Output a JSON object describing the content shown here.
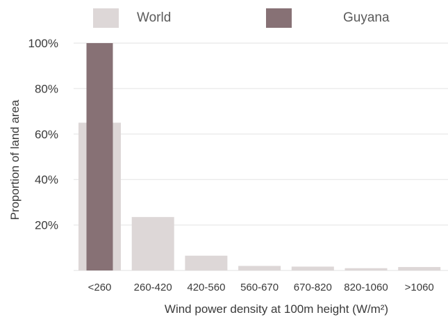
{
  "chart_data": {
    "type": "bar",
    "xlabel": "Wind power density at 100m height (W/m²)",
    "ylabel": "Proportion of land area",
    "categories": [
      "<260",
      "260-420",
      "420-560",
      "560-670",
      "670-820",
      "820-1060",
      ">1060"
    ],
    "series": [
      {
        "name": "World",
        "values": [
          65,
          23.5,
          6.5,
          2,
          1.7,
          1,
          1.5
        ],
        "color": "#ddd7d7"
      },
      {
        "name": "Guyana",
        "values": [
          100,
          0,
          0,
          0,
          0,
          0,
          0
        ],
        "color": "#877175"
      }
    ],
    "ylim": [
      0,
      100
    ],
    "yticks": [
      20,
      40,
      60,
      80,
      100
    ],
    "ytick_labels": [
      "20%",
      "40%",
      "60%",
      "80%",
      "100%"
    ],
    "grid": true,
    "legend_position": "top",
    "gridline_color": "#ececec"
  }
}
